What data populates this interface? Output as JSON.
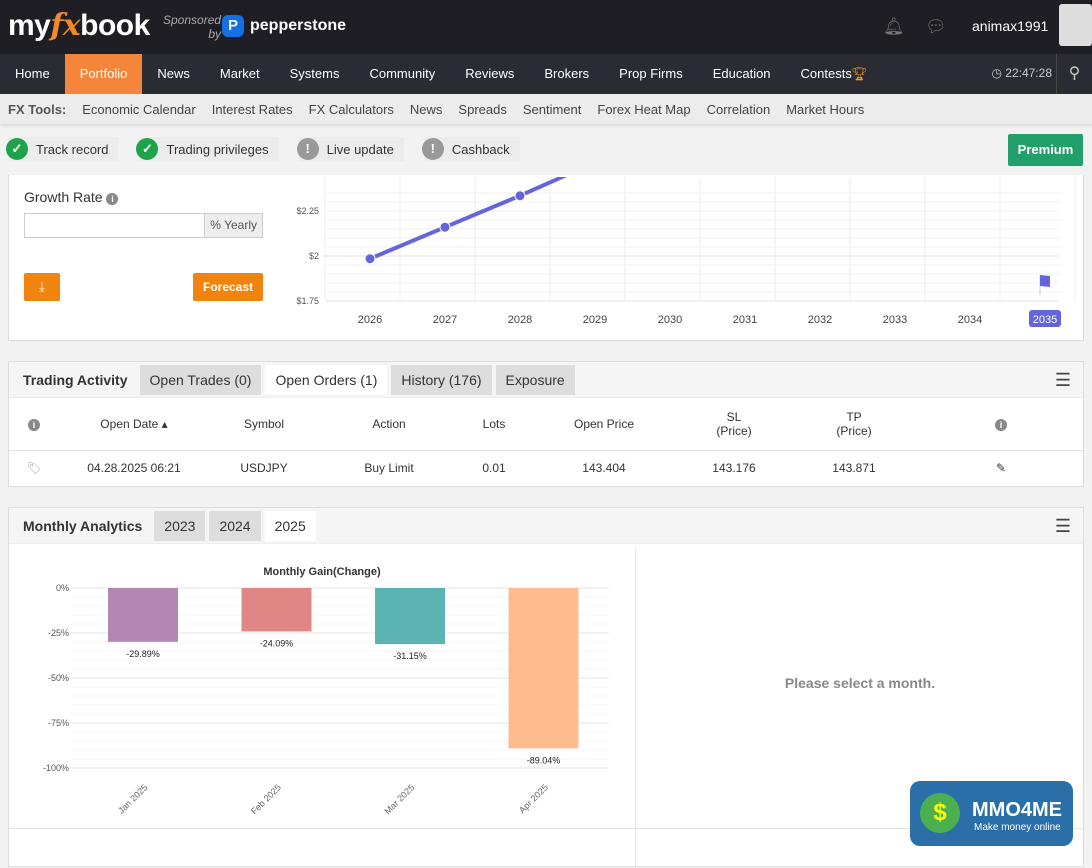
{
  "header": {
    "logo_my": "my",
    "logo_fx": "fx",
    "logo_book": "book",
    "sponsored": "Sponsored",
    "by": "by",
    "sponsor": "pepperstone",
    "username": "animax1991"
  },
  "nav": {
    "items": [
      "Home",
      "Portfolio",
      "News",
      "Market",
      "Systems",
      "Community",
      "Reviews",
      "Brokers",
      "Prop Firms",
      "Education",
      "Contests"
    ],
    "active": "Portfolio",
    "time": "22:47:28"
  },
  "tools": {
    "label": "FX Tools:",
    "items": [
      "Economic Calendar",
      "Interest Rates",
      "FX Calculators",
      "News",
      "Spreads",
      "Sentiment",
      "Forex Heat Map",
      "Correlation",
      "Market Hours"
    ]
  },
  "badges": [
    {
      "label": "Track record",
      "ok": true
    },
    {
      "label": "Trading privileges",
      "ok": true
    },
    {
      "label": "Live update",
      "ok": false
    },
    {
      "label": "Cashback",
      "ok": false
    }
  ],
  "premium": "Premium",
  "forecast": {
    "growth_label": "Growth Rate",
    "growth_value": "",
    "unit": "% Yearly",
    "forecast_button": "Forecast"
  },
  "chart_data": [
    {
      "type": "line",
      "title": "",
      "years": [
        "2026",
        "2027",
        "2028",
        "2029",
        "2030",
        "2031",
        "2032",
        "2033",
        "2034",
        "2035"
      ],
      "selected_year": "2035",
      "y_ticks": [
        "$2.25",
        "$2",
        "$1.75"
      ],
      "ylim": [
        1.75,
        2.35
      ],
      "x": [
        2026,
        2027,
        2028,
        2029
      ],
      "values": [
        1.985,
        2.16,
        2.335,
        2.52
      ],
      "color": "#6465dd"
    },
    {
      "type": "bar",
      "title": "Monthly Gain(Change)",
      "categories": [
        "Jan 2025",
        "Feb 2025",
        "Mar 2025",
        "Apr 2025"
      ],
      "values": [
        -29.89,
        -24.09,
        -31.15,
        -89.04
      ],
      "labels": [
        "-29.89%",
        "-24.09%",
        "-31.15%",
        "-89.04%"
      ],
      "colors": [
        "#b486b4",
        "#e08684",
        "#5bb3b3",
        "#ffbb90"
      ],
      "y_ticks": [
        "0%",
        "-25%",
        "-50%",
        "-75%",
        "-100%"
      ],
      "ylim": [
        -100,
        0
      ]
    }
  ],
  "trading": {
    "title": "Trading Activity",
    "tabs": [
      "Open Trades (0)",
      "Open Orders (1)",
      "History (176)",
      "Exposure"
    ],
    "active": 1,
    "headers": [
      "Open Date ▴",
      "Symbol",
      "Action",
      "Lots",
      "Open Price",
      "SL",
      "(Price)",
      "TP",
      "(Price)"
    ],
    "row": [
      "04.28.2025 06:21",
      "USDJPY",
      "Buy Limit",
      "0.01",
      "143.404",
      "143.176",
      "143.871"
    ]
  },
  "monthly": {
    "title": "Monthly Analytics",
    "tabs": [
      "2023",
      "2024",
      "2025"
    ],
    "active": 2,
    "select_msg": "Please select a month."
  },
  "watermark": {
    "title": "MMO4ME",
    "sub": "Make money online"
  }
}
